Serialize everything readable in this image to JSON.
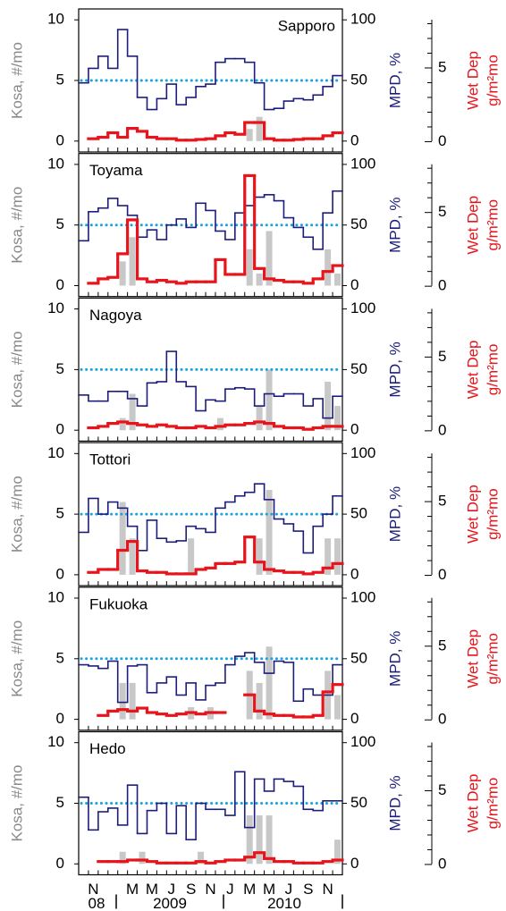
{
  "chart_data": [
    {
      "type": "step",
      "title": "Sapporo",
      "title_position": "right",
      "ylabel": "Kosa, #/mo",
      "y2label": "MPD, %",
      "y3label": [
        "Wet Dep",
        "g/m²mo"
      ],
      "ylim": [
        -0.9,
        10.9
      ],
      "yticks": [
        0,
        5,
        10
      ],
      "y2lim": [
        -9,
        109
      ],
      "y2ticks": [
        0,
        50,
        100
      ],
      "y3lim": [
        -0.7,
        9
      ],
      "y3ticks": [
        0,
        5
      ],
      "y3minor": [
        1,
        2,
        3,
        4,
        6,
        7,
        8
      ],
      "hline": {
        "value": 50,
        "axis": "y2",
        "color": "#1aa3e0"
      },
      "series": [
        {
          "style": "bar",
          "axis": "y",
          "color": "#c8c8c8",
          "values": [
            0,
            0,
            0,
            0,
            0,
            0,
            0,
            0,
            0,
            0,
            0,
            0,
            0,
            0,
            0,
            0,
            0,
            1,
            2,
            0,
            0,
            0,
            0,
            0,
            0,
            0,
            0
          ]
        },
        {
          "style": "step",
          "axis": "y2",
          "color": "#1c1c7a",
          "values": [
            48,
            60,
            70,
            60,
            92,
            70,
            36,
            26,
            35,
            47,
            30,
            36,
            45,
            47,
            65,
            68,
            68,
            65,
            48,
            26,
            27,
            33,
            35,
            34,
            38,
            45,
            54
          ]
        },
        {
          "style": "step",
          "axis": "y3",
          "color": "#e8141b",
          "values": [
            null,
            0.2,
            0.3,
            0.6,
            0.3,
            0.9,
            0.7,
            0.3,
            0.2,
            0.2,
            0.1,
            0.1,
            0.15,
            0.2,
            0.4,
            0.6,
            0.5,
            1.3,
            1.3,
            0.2,
            0.1,
            0.1,
            0.15,
            0.2,
            0.2,
            0.4,
            0.6
          ]
        }
      ]
    },
    {
      "type": "step",
      "title": "Toyama",
      "title_position": "left",
      "ylabel": "Kosa, #/mo",
      "y2label": "MPD, %",
      "y3label": [
        "Wet Dep",
        "g/m²mo"
      ],
      "ylim": [
        -0.9,
        10.9
      ],
      "yticks": [
        0,
        5,
        10
      ],
      "y2lim": [
        -9,
        109
      ],
      "y2ticks": [
        0,
        50,
        100
      ],
      "y3lim": [
        -0.7,
        9
      ],
      "y3ticks": [
        0,
        5
      ],
      "y3minor": [
        1,
        2,
        3,
        4,
        6,
        7,
        8
      ],
      "hline": {
        "value": 50,
        "axis": "y2",
        "color": "#1aa3e0"
      },
      "series": [
        {
          "style": "bar",
          "axis": "y",
          "color": "#c8c8c8",
          "values": [
            0,
            0,
            0,
            0,
            2,
            4,
            0,
            0,
            0,
            0,
            0,
            0,
            0,
            0,
            0,
            0,
            0,
            3,
            1,
            4.5,
            0,
            0,
            0,
            0,
            0,
            3,
            1
          ]
        },
        {
          "style": "step",
          "axis": "y2",
          "color": "#1c1c7a",
          "values": [
            37,
            61,
            64,
            72,
            66,
            58,
            40,
            46,
            38,
            50,
            55,
            48,
            68,
            62,
            45,
            38,
            60,
            66,
            73,
            75,
            70,
            56,
            48,
            40,
            30,
            60,
            78
          ]
        },
        {
          "style": "step",
          "axis": "y3",
          "color": "#e8141b",
          "values": [
            null,
            0.2,
            0.5,
            0.6,
            2.2,
            4.5,
            0.5,
            0.3,
            0.4,
            0.3,
            0.2,
            0.3,
            0.3,
            0.3,
            1.8,
            0.8,
            0.8,
            7.5,
            1.2,
            0.5,
            0.4,
            0.3,
            0.3,
            0.2,
            0.5,
            1.0,
            1.4
          ]
        }
      ]
    },
    {
      "type": "step",
      "title": "Nagoya",
      "title_position": "left",
      "ylabel": "Kosa, #/mo",
      "y2label": "MPD, %",
      "y3label": [
        "Wet Dep",
        "g/m²mo"
      ],
      "ylim": [
        -0.9,
        10.9
      ],
      "yticks": [
        0,
        5,
        10
      ],
      "y2lim": [
        -9,
        109
      ],
      "y2ticks": [
        0,
        50,
        100
      ],
      "y3lim": [
        -0.7,
        9
      ],
      "y3ticks": [
        0,
        5
      ],
      "y3minor": [
        1,
        2,
        3,
        4,
        6,
        7,
        8
      ],
      "hline": {
        "value": 50,
        "axis": "y2",
        "color": "#1aa3e0"
      },
      "series": [
        {
          "style": "bar",
          "axis": "y",
          "color": "#c8c8c8",
          "values": [
            0,
            0,
            0,
            0,
            1,
            3,
            0,
            0,
            0,
            0,
            0,
            0,
            0,
            0,
            1,
            0,
            0,
            0,
            2,
            5,
            0,
            0,
            0,
            0,
            0,
            4,
            2
          ]
        },
        {
          "style": "step",
          "axis": "y2",
          "color": "#1c1c7a",
          "values": [
            29,
            24,
            24,
            32,
            32,
            26,
            20,
            39,
            40,
            65,
            40,
            36,
            16,
            25,
            24,
            34,
            35,
            34,
            20,
            30,
            28,
            30,
            30,
            20,
            26,
            10,
            28
          ]
        },
        {
          "style": "step",
          "axis": "y3",
          "color": "#e8141b",
          "values": [
            null,
            0.2,
            0.3,
            0.5,
            0.6,
            0.5,
            0.4,
            0.3,
            0.4,
            0.3,
            0.2,
            0.2,
            0.3,
            0.2,
            0.3,
            0.4,
            0.4,
            0.5,
            0.6,
            0.5,
            0.3,
            0.2,
            0.2,
            0.1,
            0.2,
            0.3,
            0.3
          ]
        }
      ]
    },
    {
      "type": "step",
      "title": "Tottori",
      "title_position": "left",
      "ylabel": "Kosa, #/mo",
      "y2label": "MPD, %",
      "y3label": [
        "Wet Dep",
        "g/m²mo"
      ],
      "ylim": [
        -0.9,
        10.9
      ],
      "yticks": [
        0,
        5,
        10
      ],
      "y2lim": [
        -9,
        109
      ],
      "y2ticks": [
        0,
        50,
        100
      ],
      "y3lim": [
        -0.7,
        9
      ],
      "y3ticks": [
        0,
        5
      ],
      "y3minor": [
        1,
        2,
        3,
        4,
        6,
        7,
        8
      ],
      "hline": {
        "value": 50,
        "axis": "y2",
        "color": "#1aa3e0"
      },
      "series": [
        {
          "style": "bar",
          "axis": "y",
          "color": "#c8c8c8",
          "values": [
            0,
            0,
            0,
            0,
            6,
            3,
            0,
            0,
            0,
            0,
            0,
            3,
            0,
            0,
            0,
            0,
            0,
            0,
            3,
            7,
            0,
            0,
            0,
            0,
            0,
            3,
            3
          ]
        },
        {
          "style": "step",
          "axis": "y2",
          "color": "#1c1c7a",
          "values": [
            35,
            63,
            50,
            60,
            55,
            40,
            20,
            45,
            30,
            27,
            28,
            40,
            38,
            35,
            55,
            60,
            65,
            68,
            75,
            62,
            46,
            42,
            36,
            18,
            40,
            50,
            65
          ]
        },
        {
          "style": "step",
          "axis": "y3",
          "color": "#e8141b",
          "values": [
            null,
            0.2,
            0.4,
            0.4,
            1.7,
            2.3,
            0.3,
            0.2,
            0.2,
            0.1,
            0.1,
            0.1,
            0.4,
            0.5,
            0.8,
            0.8,
            0.9,
            2.6,
            0.9,
            0.4,
            0.3,
            0.2,
            0.2,
            0.1,
            0.2,
            0.5,
            0.8
          ]
        }
      ]
    },
    {
      "type": "step",
      "title": "Fukuoka",
      "title_position": "left",
      "ylabel": "Kosa, #/mo",
      "y2label": "MPD, %",
      "y3label": [
        "Wet Dep",
        "g/m²mo"
      ],
      "ylim": [
        -0.9,
        10.9
      ],
      "yticks": [
        0,
        5,
        10
      ],
      "y2lim": [
        -9,
        109
      ],
      "y2ticks": [
        0,
        50,
        100
      ],
      "y3lim": [
        -0.7,
        9
      ],
      "y3ticks": [
        0,
        5
      ],
      "y3minor": [
        1,
        2,
        3,
        4,
        6,
        7,
        8
      ],
      "hline": {
        "value": 50,
        "axis": "y2",
        "color": "#1aa3e0"
      },
      "series": [
        {
          "style": "bar",
          "axis": "y",
          "color": "#c8c8c8",
          "values": [
            0,
            0,
            0,
            0,
            3,
            3,
            0,
            0,
            0,
            0,
            0,
            1,
            0,
            1,
            0,
            0,
            0,
            4,
            3,
            6,
            0,
            0,
            0,
            0,
            0,
            4,
            2
          ]
        },
        {
          "style": "step",
          "axis": "y2",
          "color": "#1c1c7a",
          "values": [
            45,
            44,
            42,
            48,
            14,
            44,
            45,
            22,
            30,
            35,
            20,
            30,
            16,
            28,
            30,
            45,
            52,
            55,
            47,
            38,
            48,
            47,
            15,
            25,
            20,
            20,
            45
          ]
        },
        {
          "style": "step",
          "axis": "y3",
          "color": "#e8141b",
          "values": [
            null,
            null,
            0.3,
            0.6,
            0.7,
            0.6,
            0.8,
            0.5,
            0.4,
            0.3,
            0.4,
            0.5,
            0.4,
            0.5,
            0.5,
            null,
            null,
            1.7,
            0.6,
            0.4,
            0.3,
            0.3,
            0.2,
            0.2,
            0.3,
            1.9,
            2.4
          ]
        }
      ]
    },
    {
      "type": "step",
      "title": "Hedo",
      "title_position": "left",
      "ylabel": "Kosa, #/mo",
      "y2label": "MPD, %",
      "y3label": [
        "Wet Dep",
        "g/m²mo"
      ],
      "ylim": [
        -0.9,
        10.9
      ],
      "yticks": [
        0,
        5,
        10
      ],
      "y2lim": [
        -9,
        109
      ],
      "y2ticks": [
        0,
        50,
        100
      ],
      "y3lim": [
        -0.7,
        9
      ],
      "y3ticks": [
        0,
        5
      ],
      "y3minor": [
        1,
        2,
        3,
        4,
        6,
        7,
        8
      ],
      "hline": {
        "value": 50,
        "axis": "y2",
        "color": "#1aa3e0"
      },
      "categories": [
        null,
        "N",
        null,
        null,
        null,
        "M",
        null,
        "M",
        null,
        "J",
        null,
        "S",
        null,
        "N",
        null,
        "J",
        null,
        "M",
        null,
        "M",
        null,
        "J",
        null,
        "S",
        null,
        "N",
        null
      ],
      "year_labels": [
        "08",
        "2009",
        "2010"
      ],
      "series": [
        {
          "style": "bar",
          "axis": "y",
          "color": "#c8c8c8",
          "values": [
            0,
            0,
            0,
            0,
            1,
            0,
            1,
            0,
            0,
            0,
            0,
            0,
            1,
            0,
            0,
            0,
            0,
            4,
            4,
            4,
            0,
            0,
            0,
            0,
            0,
            0,
            2
          ]
        },
        {
          "style": "step",
          "axis": "y2",
          "color": "#1c1c7a",
          "values": [
            55,
            28,
            43,
            46,
            32,
            65,
            25,
            44,
            50,
            25,
            48,
            20,
            50,
            45,
            45,
            40,
            76,
            30,
            70,
            60,
            70,
            68,
            64,
            45,
            44,
            52,
            52
          ]
        },
        {
          "style": "step",
          "axis": "y3",
          "color": "#e8141b",
          "values": [
            null,
            null,
            0.2,
            0.2,
            0.2,
            0.3,
            0.3,
            0.2,
            0.1,
            0.1,
            0.1,
            0.1,
            0.2,
            0.1,
            0.2,
            0.3,
            0.3,
            0.5,
            0.8,
            0.4,
            0.2,
            0.2,
            0.1,
            0.1,
            0.1,
            0.2,
            0.3
          ]
        }
      ]
    }
  ]
}
